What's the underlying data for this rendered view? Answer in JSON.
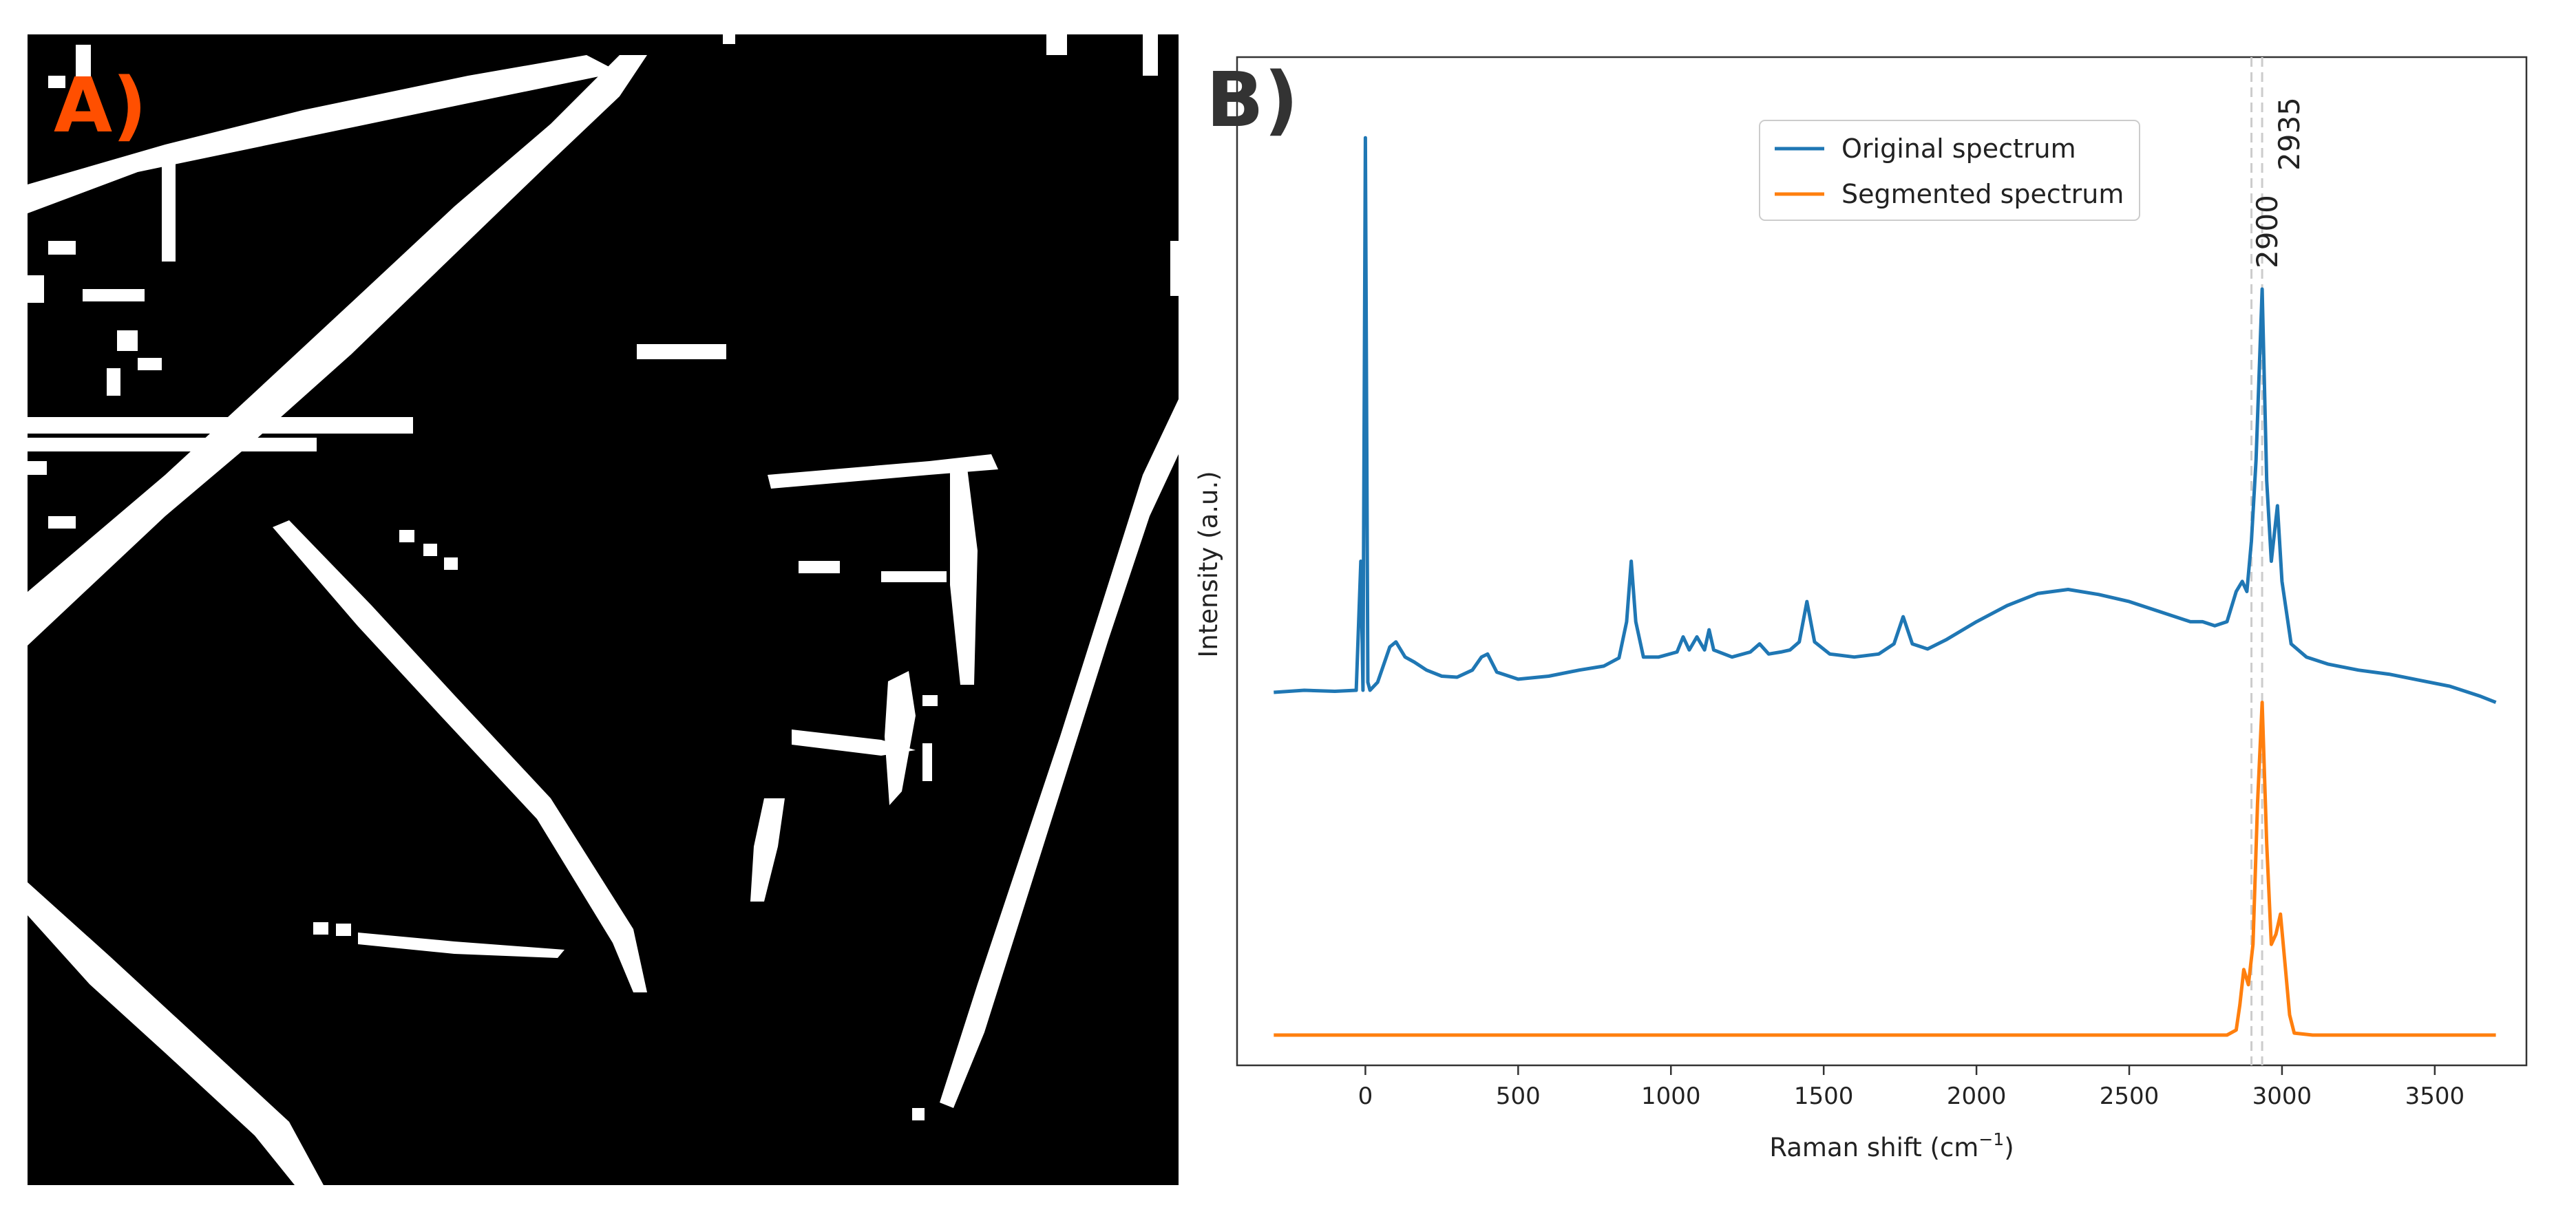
{
  "panels": {
    "a": {
      "letter": "A)",
      "letter_color": "#ff4f00"
    },
    "b": {
      "letter": "B)",
      "letter_color": "#333333"
    }
  },
  "chart_data": {
    "type": "line",
    "xlabel": "Raman shift (cm",
    "xlabel_sup": "−1",
    "xlabel_end": ")",
    "ylabel": "Intensity (a.u.)",
    "xlim": [
      -420,
      3800
    ],
    "ylim": [
      0,
      1.0
    ],
    "x_ticks": [
      0,
      500,
      1000,
      1500,
      2000,
      2500,
      3000,
      3500
    ],
    "x_tick_labels": [
      "0",
      "500",
      "1000",
      "1500",
      "2000",
      "2500",
      "3000",
      "3500"
    ],
    "y_ticks_shown": false,
    "grid": false,
    "legend": {
      "placement": "upper-center",
      "entries": [
        "Original spectrum",
        "Segmented spectrum"
      ]
    },
    "vlines": [
      {
        "x": 2900,
        "label": "2900",
        "style": "dashed",
        "color": "#cccccc"
      },
      {
        "x": 2935,
        "label": "2935",
        "style": "dashed",
        "color": "#cccccc"
      }
    ],
    "series": [
      {
        "name": "Original spectrum",
        "color": "#1f77b4",
        "x": [
          -300,
          -200,
          -100,
          -30,
          -15,
          -8,
          0,
          8,
          15,
          40,
          80,
          100,
          130,
          160,
          200,
          250,
          300,
          350,
          380,
          400,
          430,
          500,
          600,
          700,
          780,
          830,
          855,
          870,
          885,
          910,
          960,
          1020,
          1040,
          1060,
          1085,
          1110,
          1125,
          1140,
          1200,
          1260,
          1290,
          1320,
          1360,
          1390,
          1420,
          1445,
          1470,
          1520,
          1600,
          1680,
          1730,
          1760,
          1790,
          1840,
          1900,
          2000,
          2100,
          2200,
          2300,
          2400,
          2500,
          2600,
          2700,
          2740,
          2780,
          2820,
          2850,
          2870,
          2885,
          2900,
          2915,
          2935,
          2950,
          2965,
          2985,
          3000,
          3030,
          3080,
          3150,
          3250,
          3350,
          3450,
          3550,
          3650,
          3700
        ],
        "y": [
          0.37,
          0.372,
          0.371,
          0.372,
          0.5,
          0.372,
          0.92,
          0.38,
          0.372,
          0.38,
          0.415,
          0.42,
          0.405,
          0.4,
          0.392,
          0.386,
          0.385,
          0.392,
          0.405,
          0.408,
          0.39,
          0.383,
          0.386,
          0.392,
          0.396,
          0.404,
          0.44,
          0.5,
          0.44,
          0.405,
          0.405,
          0.41,
          0.425,
          0.412,
          0.425,
          0.412,
          0.432,
          0.412,
          0.405,
          0.41,
          0.418,
          0.408,
          0.41,
          0.412,
          0.42,
          0.46,
          0.42,
          0.408,
          0.405,
          0.408,
          0.418,
          0.445,
          0.418,
          0.413,
          0.422,
          0.44,
          0.456,
          0.468,
          0.472,
          0.467,
          0.46,
          0.45,
          0.44,
          0.44,
          0.436,
          0.44,
          0.47,
          0.48,
          0.47,
          0.52,
          0.6,
          0.77,
          0.58,
          0.5,
          0.555,
          0.48,
          0.418,
          0.405,
          0.398,
          0.392,
          0.388,
          0.382,
          0.376,
          0.366,
          0.36
        ]
      },
      {
        "name": "Segmented spectrum",
        "color": "#ff7f0e",
        "x": [
          -300,
          2820,
          2850,
          2862,
          2875,
          2890,
          2905,
          2920,
          2935,
          2950,
          2965,
          2980,
          2995,
          3010,
          3025,
          3040,
          3100,
          3700
        ],
        "y": [
          0.03,
          0.03,
          0.035,
          0.06,
          0.095,
          0.08,
          0.12,
          0.26,
          0.36,
          0.22,
          0.12,
          0.13,
          0.15,
          0.1,
          0.05,
          0.032,
          0.03,
          0.03
        ]
      }
    ]
  }
}
